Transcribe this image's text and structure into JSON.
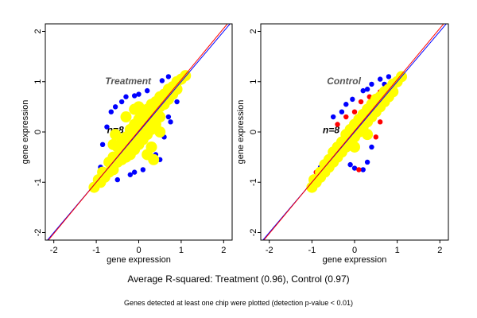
{
  "chart_data": [
    {
      "type": "scatter",
      "title": "Treatment",
      "annotation": "n=8",
      "xlabel": "gene expression",
      "ylabel": "gene expression",
      "xlim": [
        -2.2,
        2.2
      ],
      "ylim": [
        -2.15,
        2.15
      ],
      "xticks": [
        "-2",
        "-1",
        "0",
        "1",
        "2"
      ],
      "yticks": [
        "-2",
        "-1",
        "0",
        "1",
        "2"
      ],
      "lines": [
        {
          "color": "#0000ff",
          "slope": 1,
          "intercept": 0
        },
        {
          "color": "#ff0000",
          "slope": 1.02,
          "intercept": 0.02
        }
      ],
      "series": [
        {
          "color": "#0000ff",
          "points": [
            [
              -0.75,
              0.1
            ],
            [
              -0.65,
              0.4
            ],
            [
              -0.55,
              0.5
            ],
            [
              -0.4,
              0.6
            ],
            [
              -0.3,
              0.7
            ],
            [
              -0.1,
              0.72
            ],
            [
              0,
              0.75
            ],
            [
              0.2,
              0.82
            ],
            [
              0.55,
              1.02
            ],
            [
              0.7,
              1.1
            ],
            [
              0.4,
              -0.45
            ],
            [
              0.6,
              -0.1
            ],
            [
              0.5,
              -0.55
            ],
            [
              0.1,
              -0.75
            ],
            [
              -0.1,
              -0.8
            ],
            [
              -0.2,
              -0.85
            ],
            [
              -0.5,
              -0.95
            ],
            [
              -0.85,
              -0.25
            ],
            [
              0.7,
              0.3
            ],
            [
              0.75,
              0.2
            ],
            [
              -0.9,
              -0.7
            ],
            [
              0.9,
              0.6
            ]
          ]
        },
        {
          "color": "#ff0000",
          "points": [
            [
              -1.1,
              -1.1
            ],
            [
              -1.05,
              -1.15
            ],
            [
              1.05,
              1.15
            ]
          ]
        },
        {
          "color": "#ffff00",
          "points": [
            [
              -1.05,
              -1.1
            ],
            [
              -0.95,
              -0.95
            ],
            [
              -0.9,
              -1.0
            ],
            [
              -0.85,
              -0.8
            ],
            [
              -0.8,
              -0.9
            ],
            [
              -0.7,
              -0.6
            ],
            [
              -0.7,
              -0.8
            ],
            [
              -0.6,
              -0.5
            ],
            [
              -0.6,
              -0.75
            ],
            [
              -0.5,
              -0.3
            ],
            [
              -0.5,
              -0.6
            ],
            [
              -0.45,
              -0.45
            ],
            [
              -0.4,
              -0.2
            ],
            [
              -0.4,
              -0.55
            ],
            [
              -0.3,
              -0.1
            ],
            [
              -0.3,
              -0.35
            ],
            [
              -0.3,
              -0.5
            ],
            [
              -0.2,
              0.05
            ],
            [
              -0.2,
              -0.2
            ],
            [
              -0.2,
              -0.45
            ],
            [
              -0.1,
              0.15
            ],
            [
              -0.1,
              -0.1
            ],
            [
              -0.1,
              -0.35
            ],
            [
              0,
              0.25
            ],
            [
              0,
              0
            ],
            [
              0,
              -0.25
            ],
            [
              0.1,
              0.35
            ],
            [
              0.1,
              0.1
            ],
            [
              0.1,
              -0.15
            ],
            [
              0.2,
              0.45
            ],
            [
              0.2,
              0.2
            ],
            [
              0.2,
              -0.05
            ],
            [
              0.3,
              0.55
            ],
            [
              0.3,
              0.3
            ],
            [
              0.3,
              0.05
            ],
            [
              0.4,
              0.6
            ],
            [
              0.4,
              0.4
            ],
            [
              0.4,
              0.15
            ],
            [
              0.5,
              0.7
            ],
            [
              0.5,
              0.5
            ],
            [
              0.5,
              0.3
            ],
            [
              0.6,
              0.75
            ],
            [
              0.6,
              0.55
            ],
            [
              0.7,
              0.85
            ],
            [
              0.7,
              0.65
            ],
            [
              0.8,
              0.9
            ],
            [
              0.8,
              0.75
            ],
            [
              0.9,
              1.0
            ],
            [
              0.9,
              0.85
            ],
            [
              1.0,
              1.05
            ],
            [
              1.1,
              1.12
            ],
            [
              -0.6,
              -0.25
            ],
            [
              0.3,
              -0.3
            ],
            [
              0.5,
              0.0
            ],
            [
              -0.3,
              0.3
            ],
            [
              -0.1,
              0.45
            ],
            [
              0.0,
              0.5
            ],
            [
              0.2,
              -0.45
            ],
            [
              0.35,
              -0.55
            ],
            [
              -0.55,
              -0.05
            ]
          ]
        }
      ]
    },
    {
      "type": "scatter",
      "title": "Control",
      "annotation": "n=8",
      "xlabel": "gene expression",
      "ylabel": "gene expression",
      "xlim": [
        -2.2,
        2.2
      ],
      "ylim": [
        -2.15,
        2.15
      ],
      "xticks": [
        "-2",
        "-1",
        "0",
        "1",
        "2"
      ],
      "yticks": [
        "-2",
        "-1",
        "0",
        "1",
        "2"
      ],
      "lines": [
        {
          "color": "#0000ff",
          "slope": 1,
          "intercept": 0
        },
        {
          "color": "#ff0000",
          "slope": 1.02,
          "intercept": 0.02
        }
      ],
      "series": [
        {
          "color": "#0000ff",
          "points": [
            [
              -0.5,
              0.3
            ],
            [
              -0.3,
              0.4
            ],
            [
              -0.2,
              0.55
            ],
            [
              -0.05,
              0.65
            ],
            [
              0.2,
              0.82
            ],
            [
              0.3,
              0.85
            ],
            [
              0.4,
              0.95
            ],
            [
              0.6,
              1.05
            ],
            [
              0.8,
              1.1
            ],
            [
              -0.8,
              -0.7
            ],
            [
              0.0,
              -0.72
            ],
            [
              0.4,
              -0.3
            ],
            [
              0.3,
              -0.6
            ],
            [
              0.2,
              -0.75
            ],
            [
              -0.1,
              -0.65
            ],
            [
              -1.0,
              -1.05
            ],
            [
              0.9,
              1.0
            ],
            [
              0.7,
              0.95
            ]
          ]
        },
        {
          "color": "#ff0000",
          "points": [
            [
              -0.4,
              0.15
            ],
            [
              -0.2,
              0.3
            ],
            [
              0.0,
              0.4
            ],
            [
              0.15,
              0.6
            ],
            [
              0.35,
              0.7
            ],
            [
              0.6,
              0.8
            ],
            [
              -0.9,
              -0.8
            ],
            [
              -1.0,
              -1.15
            ],
            [
              0.1,
              -0.75
            ],
            [
              0.5,
              -0.1
            ],
            [
              0.6,
              0.2
            ],
            [
              -0.6,
              -0.5
            ],
            [
              0.75,
              0.9
            ]
          ]
        },
        {
          "color": "#ffff00",
          "points": [
            [
              -1.0,
              -1.1
            ],
            [
              -0.95,
              -0.95
            ],
            [
              -0.9,
              -1.0
            ],
            [
              -0.8,
              -0.8
            ],
            [
              -0.8,
              -0.9
            ],
            [
              -0.7,
              -0.65
            ],
            [
              -0.7,
              -0.8
            ],
            [
              -0.6,
              -0.55
            ],
            [
              -0.6,
              -0.7
            ],
            [
              -0.5,
              -0.4
            ],
            [
              -0.5,
              -0.6
            ],
            [
              -0.4,
              -0.3
            ],
            [
              -0.4,
              -0.5
            ],
            [
              -0.3,
              -0.2
            ],
            [
              -0.3,
              -0.4
            ],
            [
              -0.2,
              -0.05
            ],
            [
              -0.2,
              -0.3
            ],
            [
              -0.1,
              0.05
            ],
            [
              -0.1,
              -0.2
            ],
            [
              0,
              0.15
            ],
            [
              0,
              -0.1
            ],
            [
              0.1,
              0.25
            ],
            [
              0.1,
              0.0
            ],
            [
              0.2,
              0.35
            ],
            [
              0.2,
              0.1
            ],
            [
              0.3,
              0.45
            ],
            [
              0.3,
              0.2
            ],
            [
              0.4,
              0.55
            ],
            [
              0.4,
              0.3
            ],
            [
              0.5,
              0.65
            ],
            [
              0.5,
              0.4
            ],
            [
              0.6,
              0.7
            ],
            [
              0.6,
              0.5
            ],
            [
              0.7,
              0.8
            ],
            [
              0.7,
              0.6
            ],
            [
              0.8,
              0.85
            ],
            [
              0.8,
              0.7
            ],
            [
              0.9,
              0.95
            ],
            [
              0.9,
              0.8
            ],
            [
              1.0,
              1.0
            ],
            [
              1.1,
              1.1
            ],
            [
              0.0,
              -0.3
            ],
            [
              0.3,
              -0.05
            ]
          ]
        }
      ]
    }
  ],
  "caption": "Average R-squared: Treatment (0.96), Control (0.97)",
  "footnote": "Genes detected at least one chip were plotted (detection p-value < 0.01)"
}
